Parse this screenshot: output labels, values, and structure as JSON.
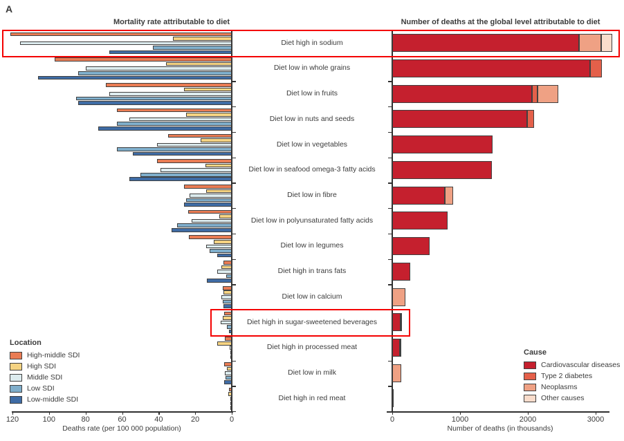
{
  "panel_label": "A",
  "left_chart": {
    "title": "Mortality rate attributable to diet",
    "xlabel": "Deaths rate (per 100 000 population)",
    "ticks": [
      120,
      100,
      80,
      60,
      40,
      20,
      0
    ]
  },
  "right_chart": {
    "title": "Number of deaths at the global level attributable to diet",
    "xlabel": "Number of deaths (in thousands)",
    "ticks": [
      0,
      1000,
      2000,
      3000
    ]
  },
  "location_legend": {
    "title": "Location",
    "items": [
      {
        "label": "High-middle SDI",
        "color": "#e97c54"
      },
      {
        "label": "High SDI",
        "color": "#f5d382"
      },
      {
        "label": "Middle SDI",
        "color": "#dcebee"
      },
      {
        "label": "Low SDI",
        "color": "#7faecb"
      },
      {
        "label": "Low-middle SDI",
        "color": "#3f6ca5"
      }
    ]
  },
  "cause_legend": {
    "title": "Cause",
    "items": [
      {
        "label": "Cardiovascular diseases",
        "color": "#c5202e"
      },
      {
        "label": "Type 2 diabetes",
        "color": "#e4604a"
      },
      {
        "label": "Neoplasms",
        "color": "#efa184"
      },
      {
        "label": "Other causes",
        "color": "#f9dccb"
      }
    ]
  },
  "highlight_color": "#f40000",
  "highlights": [
    {
      "row_index": 0,
      "row": "Diet high in sodium",
      "scope": "full-row"
    },
    {
      "row_index": 11,
      "row": "Diet high in sugar-sweetened beverages",
      "scope": "label"
    }
  ],
  "chart_data": [
    {
      "type": "bar",
      "orientation": "horizontal-right-aligned",
      "title": "Mortality rate attributable to diet",
      "xlabel": "Deaths rate (per 100 000 population)",
      "xlim": [
        0,
        120
      ],
      "legend_position": "bottom-left",
      "categories": [
        "Diet high in sodium",
        "Diet low in whole grains",
        "Diet low in fruits",
        "Diet low in nuts and seeds",
        "Diet low in vegetables",
        "Diet low in seafood omega-3 fatty acids",
        "Diet low in fibre",
        "Diet low in polyunsaturated fatty acids",
        "Diet low in legumes",
        "Diet high in trans fats",
        "Diet low in calcium",
        "Diet high in sugar-sweetened beverages",
        "Diet high in processed meat",
        "Diet low in milk",
        "Diet high in red meat"
      ],
      "series": [
        {
          "name": "High-middle SDI",
          "values": [
            121,
            97,
            69,
            63,
            35,
            41,
            26,
            24,
            23.5,
            4.5,
            5,
            4.2,
            3.8,
            4.1,
            1.5
          ]
        },
        {
          "name": "High SDI",
          "values": [
            32,
            36,
            26,
            25,
            17,
            14.5,
            14,
            7,
            10,
            5.5,
            4.5,
            5,
            8,
            2.6,
            1.9
          ]
        },
        {
          "name": "Middle SDI",
          "values": [
            116,
            80,
            67,
            56,
            41,
            39,
            23,
            22,
            14,
            8,
            5.7,
            6,
            1.1,
            3.8,
            0.9
          ]
        },
        {
          "name": "Low SDI",
          "values": [
            43,
            84,
            85,
            63,
            63,
            50,
            25,
            30,
            12,
            3,
            5,
            2.7,
            0.7,
            3.4,
            0.4
          ]
        },
        {
          "name": "Low-middle SDI",
          "values": [
            67,
            106,
            84,
            73,
            54,
            56,
            26,
            33,
            8,
            13.5,
            4.5,
            1.5,
            0.6,
            4.1,
            0.4
          ]
        }
      ]
    },
    {
      "type": "bar",
      "orientation": "horizontal-stacked",
      "title": "Number of deaths at the global level attributable to diet",
      "xlabel": "Number of deaths (in thousands)",
      "xlim": [
        0,
        3200
      ],
      "legend_position": "bottom-right",
      "categories": [
        "Diet high in sodium",
        "Diet low in whole grains",
        "Diet low in fruits",
        "Diet low in nuts and seeds",
        "Diet low in vegetables",
        "Diet low in seafood omega-3 fatty acids",
        "Diet low in fibre",
        "Diet low in polyunsaturated fatty acids",
        "Diet low in legumes",
        "Diet high in trans fats",
        "Diet low in calcium",
        "Diet high in sugar-sweetened beverages",
        "Diet high in processed meat",
        "Diet low in milk",
        "Diet high in red meat"
      ],
      "series": [
        {
          "name": "Cardiovascular diseases",
          "values": [
            2760,
            2920,
            2060,
            1985,
            1480,
            1470,
            775,
            815,
            550,
            270,
            0,
            120,
            110,
            0,
            25
          ]
        },
        {
          "name": "Type 2 diabetes",
          "values": [
            0,
            175,
            85,
            110,
            0,
            0,
            0,
            0,
            0,
            0,
            0,
            20,
            15,
            0,
            0
          ]
        },
        {
          "name": "Neoplasms",
          "values": [
            320,
            0,
            305,
            0,
            0,
            0,
            125,
            0,
            0,
            0,
            190,
            0,
            0,
            130,
            0
          ]
        },
        {
          "name": "Other causes",
          "values": [
            165,
            0,
            0,
            0,
            0,
            0,
            0,
            0,
            0,
            0,
            0,
            0,
            0,
            0,
            0
          ]
        }
      ]
    }
  ]
}
